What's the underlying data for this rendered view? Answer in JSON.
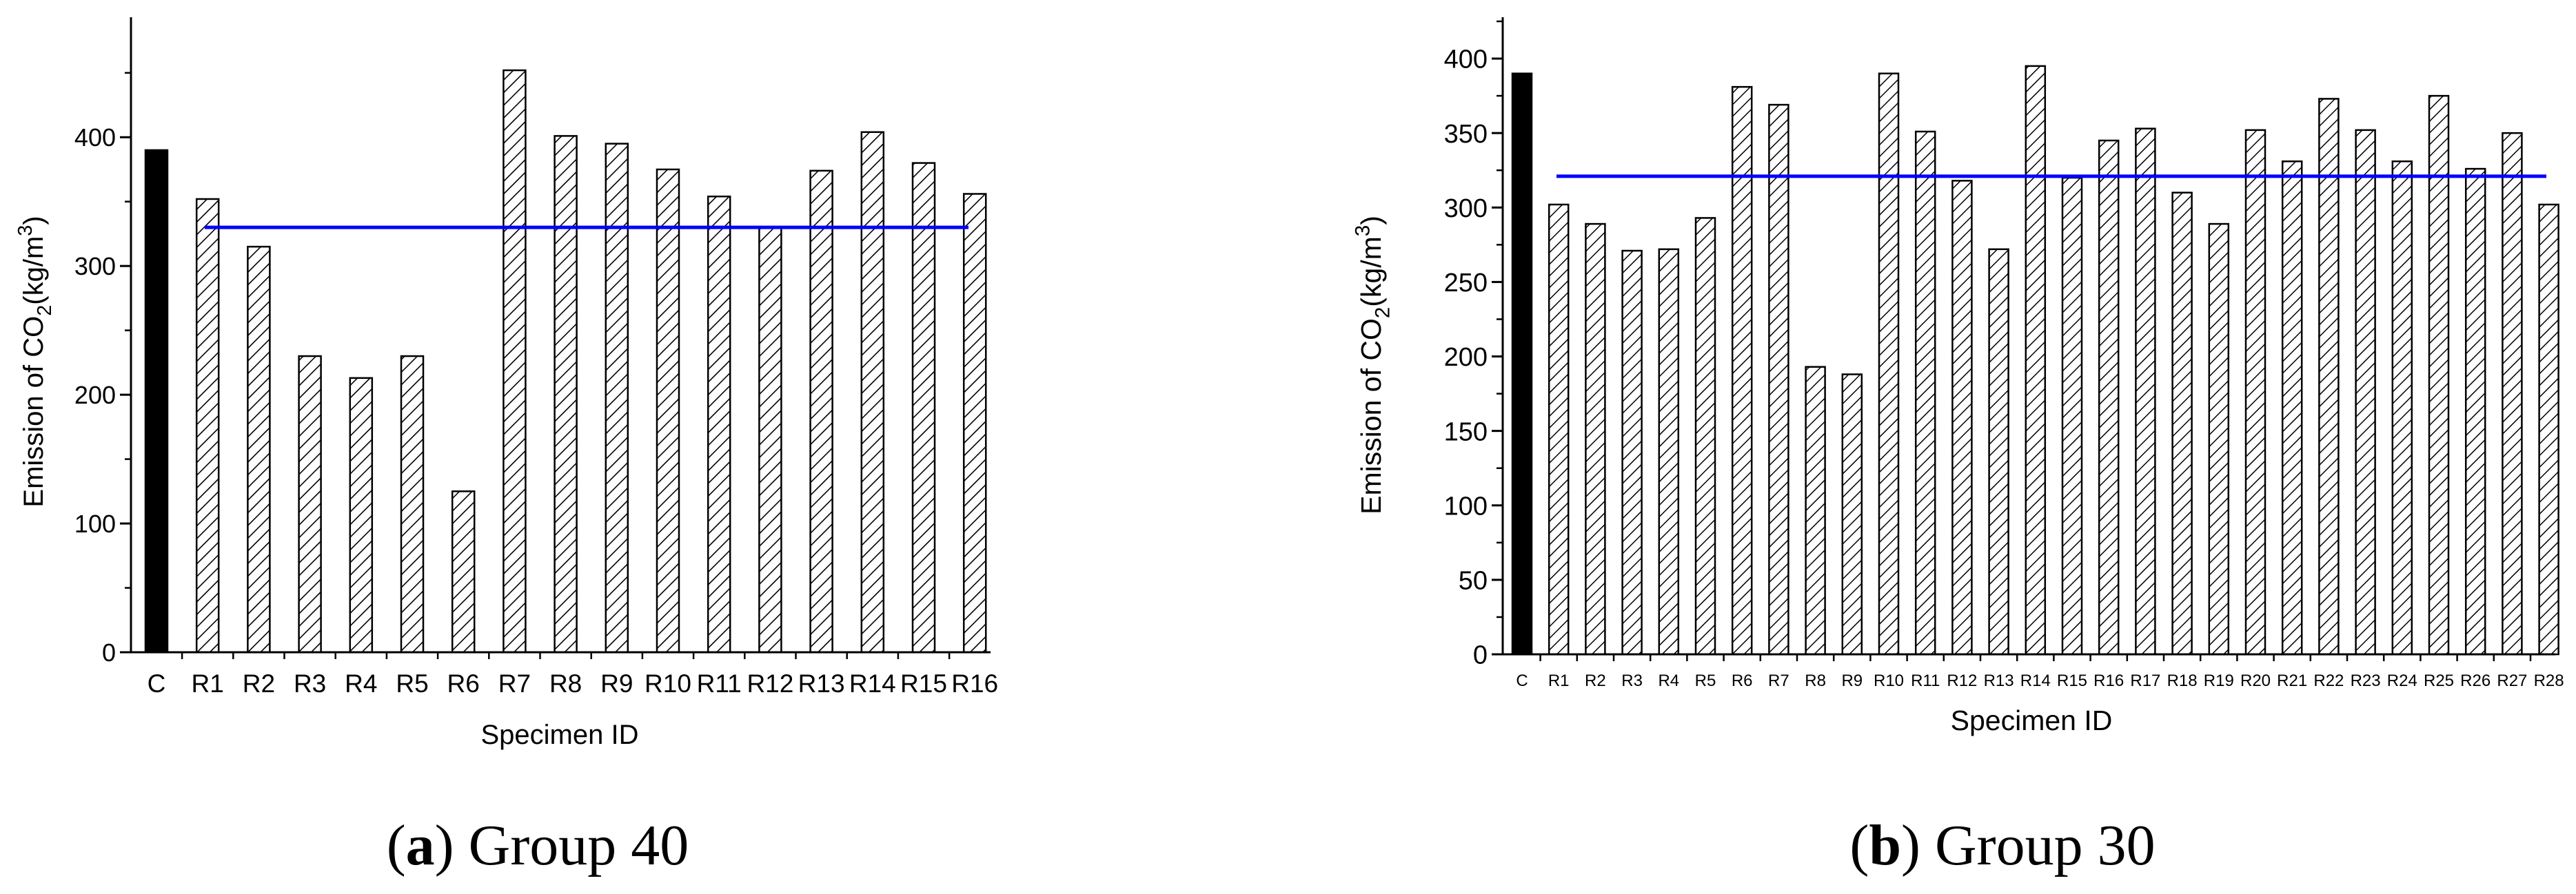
{
  "figure": {
    "captions": [
      {
        "letter": "a",
        "text": "Group 40"
      },
      {
        "letter": "b",
        "text": "Group 30"
      }
    ]
  },
  "chart_data": [
    {
      "type": "bar",
      "xlabel": "Specimen ID",
      "ylabel_prefix": "Emission of CO",
      "ylabel_sub": "2",
      "ylabel_unit_open": "(kg/m",
      "ylabel_sup": "3",
      "ylabel_unit_close": ")",
      "ylim": [
        0,
        490
      ],
      "yticks": [
        0,
        100,
        200,
        300,
        400
      ],
      "categories": [
        "C",
        "R1",
        "R2",
        "R3",
        "R4",
        "R5",
        "R6",
        "R7",
        "R8",
        "R9",
        "R10",
        "R11",
        "R12",
        "R13",
        "R14",
        "R15",
        "R16"
      ],
      "values": [
        390,
        352,
        315,
        230,
        213,
        230,
        125,
        452,
        401,
        395,
        375,
        354,
        330,
        374,
        404,
        380,
        356
      ],
      "reference_line": 330,
      "colors": {
        "control": "#000000",
        "bars": "#ffffff",
        "hatch": "#000000",
        "reference": "#0000ff"
      }
    },
    {
      "type": "bar",
      "xlabel": "Specimen ID",
      "ylabel_prefix": "Emission of CO",
      "ylabel_sub": "2",
      "ylabel_unit_open": "(kg/m",
      "ylabel_sup": "3",
      "ylabel_unit_close": ")",
      "ylim": [
        0,
        425
      ],
      "yticks": [
        0,
        50,
        100,
        150,
        200,
        250,
        300,
        350,
        400
      ],
      "categories": [
        "C",
        "R1",
        "R2",
        "R3",
        "R4",
        "R5",
        "R6",
        "R7",
        "R8",
        "R9",
        "R10",
        "R11",
        "R12",
        "R13",
        "R14",
        "R15",
        "R16",
        "R17",
        "R18",
        "R19",
        "R20",
        "R21",
        "R22",
        "R23",
        "R24",
        "R25",
        "R26",
        "R27",
        "R28"
      ],
      "values": [
        390,
        302,
        289,
        271,
        272,
        293,
        381,
        369,
        193,
        188,
        390,
        351,
        318,
        272,
        395,
        320,
        345,
        353,
        310,
        289,
        352,
        331,
        373,
        352,
        331,
        375,
        326,
        350,
        302
      ],
      "reference_line": 321,
      "colors": {
        "control": "#000000",
        "bars": "#ffffff",
        "hatch": "#000000",
        "reference": "#0000ff"
      }
    }
  ]
}
